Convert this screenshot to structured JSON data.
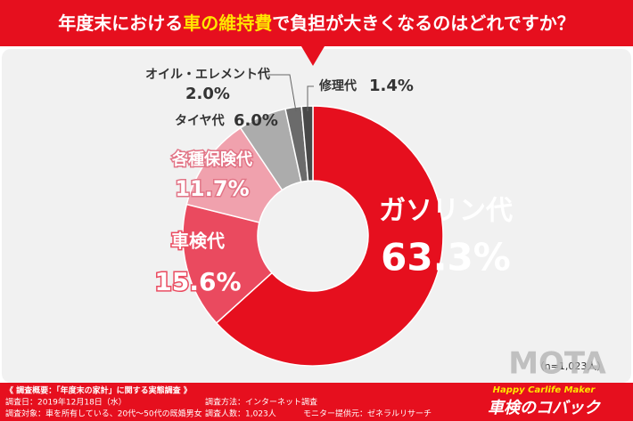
{
  "chart_data": {
    "type": "donut",
    "title_parts": [
      "年度末における",
      "車の維持費",
      "で負担が大きくなるのはどれですか？"
    ],
    "categories": [
      "ガソリン代",
      "車検代",
      "各種保険代",
      "タイヤ代",
      "オイル・エレメント代",
      "修理代"
    ],
    "values": [
      63.3,
      15.6,
      11.7,
      6.0,
      2.0,
      1.4
    ],
    "value_labels": [
      "63.3%",
      "15.6%",
      "11.7%",
      "6.0%",
      "2.0%",
      "1.4%"
    ],
    "colors": [
      "#e60f1e",
      "#ea4a5f",
      "#f0a1ad",
      "#acacac",
      "#6b6b6b",
      "#484848"
    ],
    "note": "（n=1,023人）"
  },
  "footer": {
    "heading": "《 調査概要：「年度末の家計」に関する実態調査 》",
    "items": [
      "調査日：2019年12月18日（水）",
      "調査方法：インターネット調査",
      "調査対象：車を所有している、20代〜50代の既婚男女",
      "調査人数：1,023人",
      "モニター提供元：ゼネラルリサーチ"
    ],
    "logo": "MOTA",
    "tagline": "Happy Carlife Maker",
    "brand": "車検のコバック"
  }
}
